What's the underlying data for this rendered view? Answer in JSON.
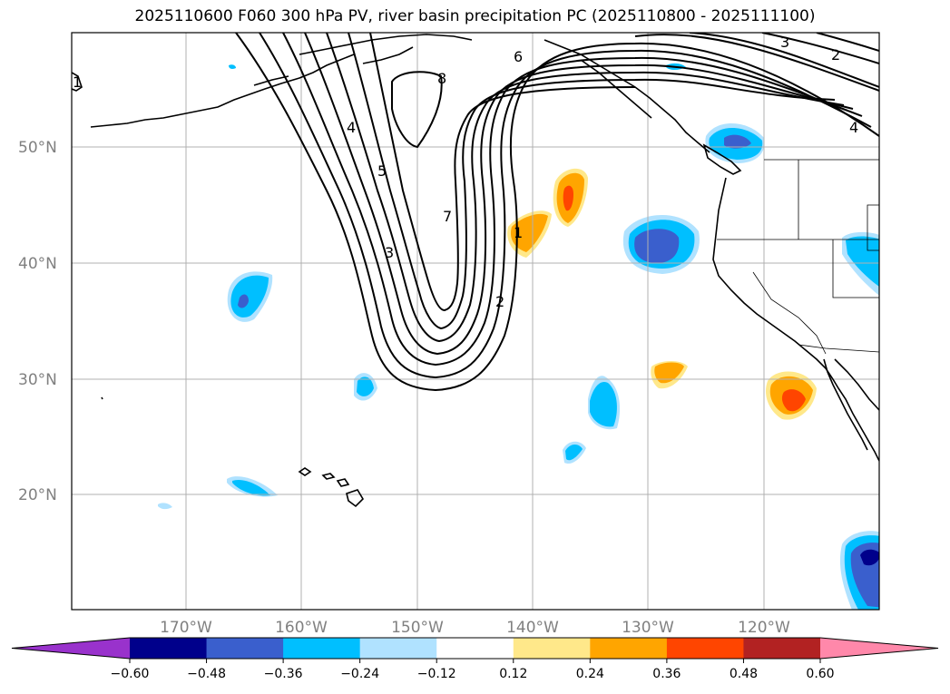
{
  "title": "2025110600 F060 300 hPa PV, river basin precipitation PC (2025110800 - 2025111100)",
  "lat_labels": [
    "50°N",
    "40°N",
    "30°N",
    "20°N"
  ],
  "lon_labels": [
    "170°W",
    "160°W",
    "150°W",
    "140°W",
    "130°W",
    "120°W"
  ],
  "contour_labels": [
    "1",
    "2",
    "3",
    "4",
    "5",
    "6",
    "7",
    "8",
    "1",
    "2",
    "3",
    "4"
  ],
  "colorbar": {
    "ticks": [
      "−0.60",
      "−0.48",
      "−0.36",
      "−0.24",
      "−0.12",
      "0.12",
      "0.24",
      "0.36",
      "0.48",
      "0.60"
    ],
    "colors": [
      "#9932cc",
      "#00008b",
      "#3a5fcd",
      "#00bfff",
      "#b0e2ff",
      "#ffffff",
      "#ffe88a",
      "#ffa500",
      "#ff4500",
      "#b22222",
      "#ff88aa"
    ],
    "levels": [
      -0.6,
      -0.48,
      -0.36,
      -0.24,
      -0.12,
      0.12,
      0.24,
      0.36,
      0.48,
      0.6
    ]
  },
  "palette": {
    "neg_light": "#b0e2ff",
    "neg_mid": "#00bfff",
    "neg_strong": "#3a5fcd",
    "neg_max": "#00008b",
    "pos_light": "#ffe88a",
    "pos_mid": "#ffa500",
    "pos_strong": "#ff4500"
  }
}
